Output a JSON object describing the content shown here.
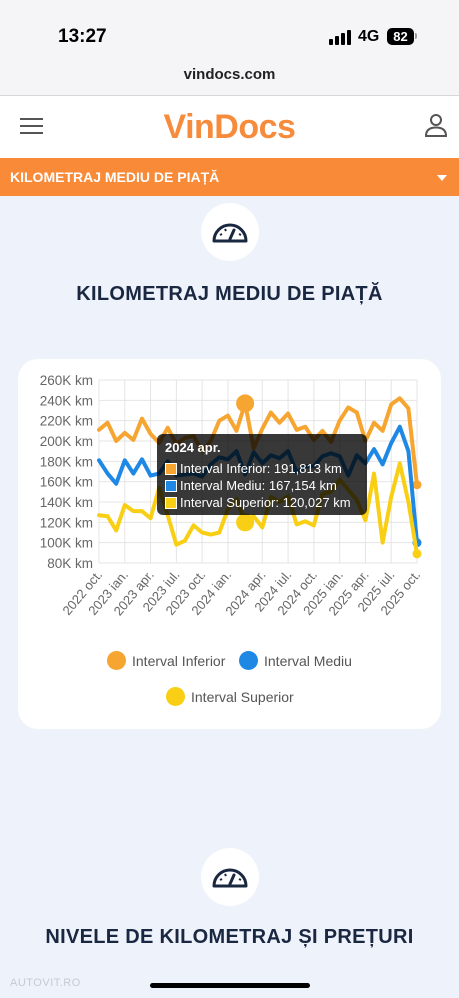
{
  "status_bar": {
    "time": "13:27",
    "network": "4G",
    "battery": "82"
  },
  "browser": {
    "url": "vindocs.com"
  },
  "header": {
    "logo": "VinDocs"
  },
  "dropdown_bar": {
    "label": "KILOMETRAJ MEDIU DE PIAȚĂ"
  },
  "section1": {
    "title": "KILOMETRAJ MEDIU DE PIAȚĂ"
  },
  "section2": {
    "title": "NIVELE DE KILOMETRAJ ȘI PREȚURI"
  },
  "watermark": "AUTOVIT.RO",
  "colors": {
    "brand": "#f78b3c",
    "orange_bar": "#f98a38",
    "series_inferior": "#f7a531",
    "series_mediu": "#1f88e5",
    "series_superior": "#f8cf14"
  },
  "icons": {
    "menu": "hamburger-icon",
    "user": "user-icon",
    "speedometer": "speedometer-icon",
    "dropdown": "caret-down-icon"
  },
  "tooltip": {
    "title": "2024 apr.",
    "rows": [
      "Interval Inferior: 191,813 km",
      "Interval Mediu: 167,154 km",
      "Interval Superior: 120,027 km"
    ]
  },
  "chart_data": {
    "type": "line",
    "ylim": [
      80000,
      260000
    ],
    "y_ticks": [
      "80K km",
      "100K km",
      "120K km",
      "140K km",
      "160K km",
      "180K km",
      "200K km",
      "220K km",
      "240K km",
      "260K km"
    ],
    "x_tick_labels": [
      "2022 oct.",
      "2023 ian.",
      "2023 apr.",
      "2023 iul.",
      "2023 oct.",
      "2024 ian.",
      "2024 apr.",
      "2024 iul.",
      "2024 oct.",
      "2025 ian.",
      "2025 apr.",
      "2025 iul.",
      "2025 oct."
    ],
    "grid": true,
    "legend_position": "bottom",
    "series": [
      {
        "name": "Interval Inferior",
        "values": [
          211000,
          218000,
          200000,
          208000,
          201000,
          222000,
          207000,
          198000,
          213000,
          197000,
          203000,
          205000,
          190000,
          200000,
          220000,
          225000,
          210000,
          237000,
          193000,
          212000,
          228000,
          218000,
          227000,
          211000,
          214000,
          201000,
          210000,
          199000,
          220000,
          233000,
          228000,
          200000,
          218000,
          210000,
          236000,
          242000,
          232000,
          157000
        ]
      },
      {
        "name": "Interval Mediu",
        "values": [
          181000,
          168000,
          158000,
          181000,
          168000,
          182000,
          166000,
          168000,
          180000,
          166000,
          167000,
          168000,
          165000,
          177000,
          184000,
          182000,
          190000,
          167000,
          189000,
          178000,
          186000,
          183000,
          190000,
          169000,
          175000,
          175000,
          185000,
          188000,
          185000,
          166000,
          186000,
          178000,
          192000,
          177000,
          198000,
          214000,
          190000,
          100000
        ]
      },
      {
        "name": "Interval Superior",
        "values": [
          127000,
          126000,
          112000,
          137000,
          131000,
          131000,
          124000,
          154000,
          127000,
          98000,
          102000,
          117000,
          110000,
          108000,
          110000,
          133000,
          143000,
          120000,
          126000,
          115000,
          145000,
          140000,
          146000,
          118000,
          121000,
          117000,
          148000,
          150000,
          162000,
          152000,
          142000,
          122000,
          168000,
          100000,
          145000,
          178000,
          140000,
          89000
        ]
      }
    ]
  }
}
